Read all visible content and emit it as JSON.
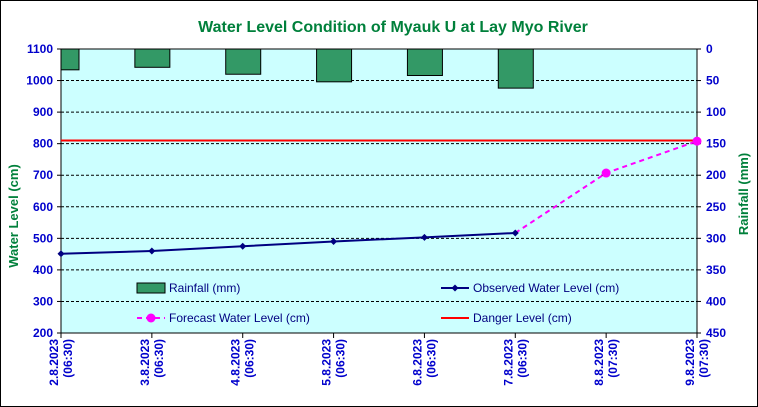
{
  "chart_data": {
    "type": "line",
    "title": "Water Level Condition  of Myauk U at Lay Myo River",
    "ylabel": "Water Level (cm)",
    "y2label": "Rainfall (mm)",
    "ylim": [
      200,
      1100
    ],
    "y2lim": [
      0,
      450
    ],
    "yticks": [
      "200",
      "300",
      "400",
      "500",
      "600",
      "700",
      "800",
      "900",
      "1000",
      "1100"
    ],
    "y2ticks": [
      "0",
      "50",
      "100",
      "150",
      "200",
      "250",
      "300",
      "350",
      "400",
      "450"
    ],
    "categories": [
      [
        "2.8.2023",
        "(06:30)"
      ],
      [
        "3.8.2023",
        "(06:30)"
      ],
      [
        "4.8.2023",
        "(06:30)"
      ],
      [
        "5.8.2023",
        "(06:30)"
      ],
      [
        "6.8.2023",
        "(06:30)"
      ],
      [
        "7.8.2023",
        "(06:30)"
      ],
      [
        "8.8.2023",
        "(07:30)"
      ],
      [
        "9.8.2023",
        "(07:30)"
      ]
    ],
    "series": [
      {
        "name": "Rainfall (mm)",
        "kind": "bar",
        "axis": "right",
        "color": "#339966",
        "values": [
          33,
          29,
          40,
          52,
          42,
          62,
          null,
          null
        ]
      },
      {
        "name": "Observed Water Level (cm)",
        "kind": "line",
        "axis": "left",
        "color": "#000080",
        "values": [
          451,
          460,
          475,
          490,
          503,
          517,
          null,
          null
        ]
      },
      {
        "name": "Forecast Water Level (cm)",
        "kind": "dashed-line",
        "axis": "left",
        "color": "#ff00ff",
        "values": [
          null,
          null,
          null,
          null,
          null,
          517,
          707,
          808
        ]
      },
      {
        "name": "Danger Level (cm)",
        "kind": "hline",
        "axis": "left",
        "color": "#ff0000",
        "value": 810
      }
    ],
    "grid": true,
    "legend": "inside-bottom",
    "plot_background": "#ccffff"
  }
}
